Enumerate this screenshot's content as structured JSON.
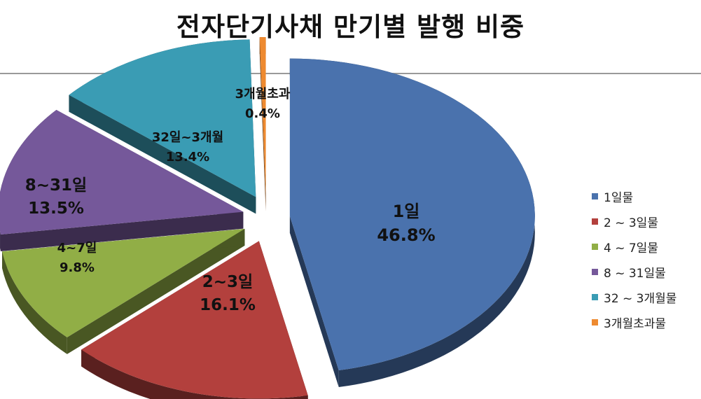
{
  "chart_data": {
    "type": "pie",
    "title": "전자단기사채 만기별 발행 비중",
    "slices": [
      {
        "name": "1일물",
        "label_name": "1일",
        "value": 46.8,
        "label": "46.8%",
        "color": "#4a72ad"
      },
      {
        "name": "2 ~ 3일물",
        "label_name": "2~3일",
        "value": 16.1,
        "label": "16.1%",
        "color": "#b3403d"
      },
      {
        "name": "4 ~ 7일물",
        "label_name": "4~7일",
        "value": 9.8,
        "label": "9.8%",
        "color": "#91ae46"
      },
      {
        "name": "8 ~ 31일물",
        "label_name": "8~31일",
        "value": 13.5,
        "label": "13.5%",
        "color": "#75589a"
      },
      {
        "name": "32 ~ 3개월물",
        "label_name": "32일~3개월",
        "value": 13.4,
        "label": "13.4%",
        "color": "#3a9cb4"
      },
      {
        "name": "3개월초과물",
        "label_name": "3개월초과",
        "value": 0.4,
        "label": "0.4%",
        "color": "#ee8a30"
      }
    ],
    "legend_position": "right",
    "exploded": true,
    "three_d": true
  }
}
